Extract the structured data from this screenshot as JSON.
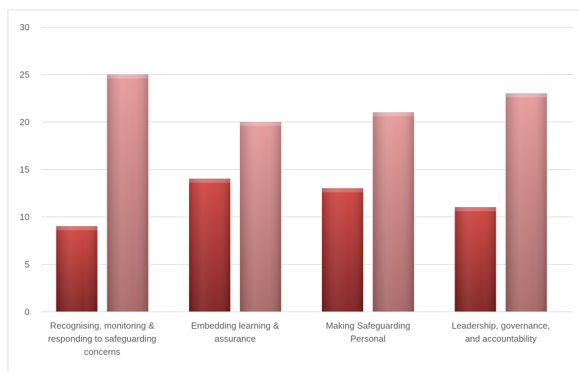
{
  "chart_data": {
    "type": "bar",
    "title": "",
    "xlabel": "",
    "ylabel": "",
    "categories": [
      [
        "Recognising, monitoring &",
        "responding to safeguarding",
        "concerns"
      ],
      [
        "Embedding learning &",
        "assurance"
      ],
      [
        "Making Safeguarding",
        "Personal"
      ],
      [
        "Leadership, governance,",
        "and accountability"
      ]
    ],
    "series": [
      {
        "values": [
          9,
          14,
          13,
          11
        ]
      },
      {
        "values": [
          25,
          20,
          21,
          23
        ]
      }
    ],
    "ylim": [
      0,
      30
    ],
    "yticks": [
      0,
      5,
      10,
      15,
      20,
      25,
      30
    ],
    "grid": true,
    "legend": "none",
    "colors": {
      "series_0_top": "#d0413e",
      "series_0_bottom": "#7d1d1d",
      "series_1_top": "#e59898",
      "series_1_bottom": "#a56464",
      "grid": "#d9d9d9",
      "text": "#595959"
    }
  }
}
